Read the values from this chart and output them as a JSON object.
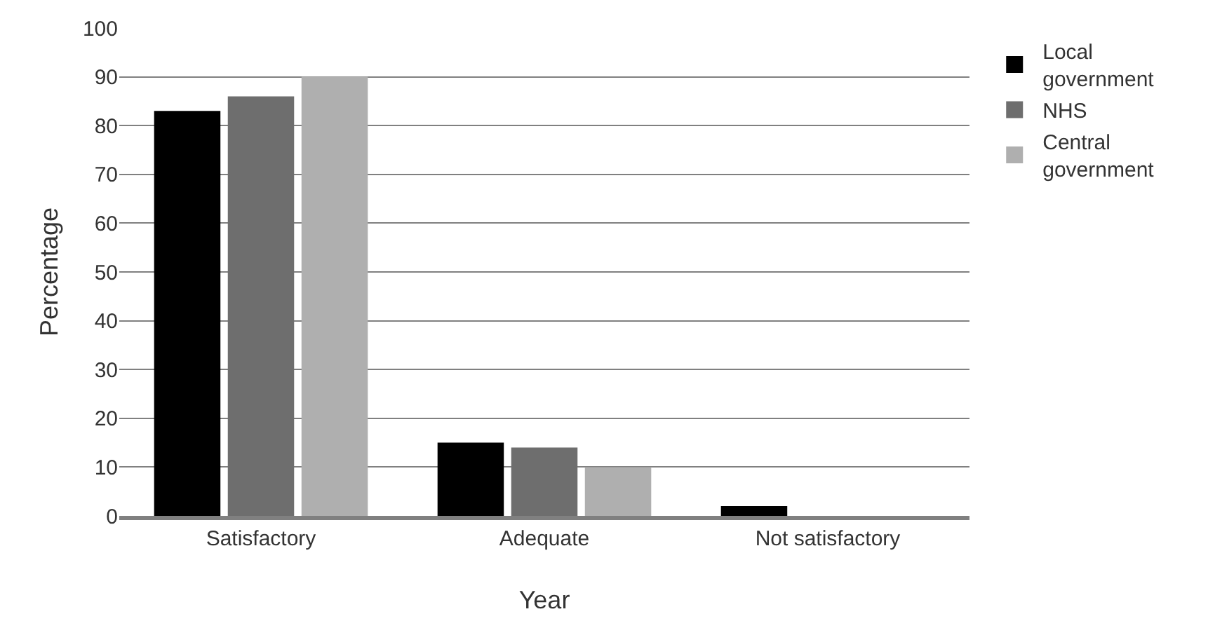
{
  "chart_data": {
    "type": "bar",
    "xlabel": "Year",
    "ylabel": "Percentage",
    "categories": [
      "Satisfactory",
      "Adequate",
      "Not satisfactory"
    ],
    "series": [
      {
        "name": "Local government",
        "color": "#000000",
        "values": [
          83,
          15,
          2
        ]
      },
      {
        "name": "NHS",
        "color": "#6e6e6e",
        "values": [
          86,
          14,
          0
        ]
      },
      {
        "name": "Central government",
        "color": "#afafaf",
        "values": [
          90,
          10,
          0
        ]
      }
    ],
    "ylim": [
      0,
      100
    ],
    "yticks": [
      0,
      10,
      20,
      30,
      40,
      50,
      60,
      70,
      80,
      90,
      100
    ],
    "grid": "y",
    "legend": "top right"
  }
}
